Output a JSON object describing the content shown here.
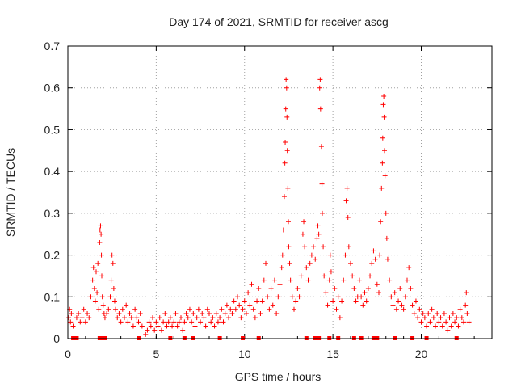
{
  "chart_data": {
    "type": "scatter",
    "title": "Day 174 of 2021, SRMTID for receiver ascg",
    "xlabel": "GPS time / hours",
    "ylabel": "SRMTID / TECUs",
    "xlim": [
      0,
      24
    ],
    "ylim": [
      0,
      0.7
    ],
    "xticks": [
      "0",
      "5",
      "10",
      "15",
      "20"
    ],
    "yticks": [
      "0",
      "0.1",
      "0.2",
      "0.3",
      "0.4",
      "0.5",
      "0.6",
      "0.7"
    ],
    "grid": true,
    "marker": "+",
    "color": "#ff0000",
    "series": [
      {
        "name": "SRMTID",
        "points": [
          [
            0.05,
            0.05
          ],
          [
            0.1,
            0.07
          ],
          [
            0.15,
            0.04
          ],
          [
            0.2,
            0.06
          ],
          [
            0.3,
            0.03
          ],
          [
            0.5,
            0.05
          ],
          [
            0.6,
            0.06
          ],
          [
            0.7,
            0.04
          ],
          [
            0.8,
            0.05
          ],
          [
            0.9,
            0.07
          ],
          [
            1.0,
            0.04
          ],
          [
            1.1,
            0.06
          ],
          [
            1.2,
            0.05
          ],
          [
            1.3,
            0.1
          ],
          [
            1.4,
            0.14
          ],
          [
            1.45,
            0.17
          ],
          [
            1.5,
            0.12
          ],
          [
            1.55,
            0.09
          ],
          [
            1.6,
            0.16
          ],
          [
            1.65,
            0.11
          ],
          [
            1.7,
            0.18
          ],
          [
            1.75,
            0.07
          ],
          [
            1.8,
            0.23
          ],
          [
            1.82,
            0.26
          ],
          [
            1.85,
            0.27
          ],
          [
            1.88,
            0.25
          ],
          [
            1.9,
            0.2
          ],
          [
            1.92,
            0.15
          ],
          [
            1.95,
            0.1
          ],
          [
            2.0,
            0.08
          ],
          [
            2.05,
            0.06
          ],
          [
            2.1,
            0.05
          ],
          [
            2.2,
            0.06
          ],
          [
            2.3,
            0.07
          ],
          [
            2.4,
            0.1
          ],
          [
            2.45,
            0.14
          ],
          [
            2.5,
            0.2
          ],
          [
            2.55,
            0.18
          ],
          [
            2.6,
            0.12
          ],
          [
            2.65,
            0.09
          ],
          [
            2.7,
            0.07
          ],
          [
            2.8,
            0.05
          ],
          [
            2.9,
            0.06
          ],
          [
            3.0,
            0.04
          ],
          [
            3.1,
            0.07
          ],
          [
            3.2,
            0.05
          ],
          [
            3.3,
            0.08
          ],
          [
            3.4,
            0.04
          ],
          [
            3.5,
            0.06
          ],
          [
            3.6,
            0.05
          ],
          [
            3.7,
            0.03
          ],
          [
            3.8,
            0.07
          ],
          [
            3.9,
            0.05
          ],
          [
            4.0,
            0.04
          ],
          [
            4.1,
            0.06
          ],
          [
            4.2,
            0.03
          ],
          [
            4.4,
            0.01
          ],
          [
            4.5,
            0.02
          ],
          [
            4.6,
            0.04
          ],
          [
            4.7,
            0.03
          ],
          [
            4.8,
            0.05
          ],
          [
            4.9,
            0.02
          ],
          [
            5.0,
            0.04
          ],
          [
            5.1,
            0.03
          ],
          [
            5.2,
            0.05
          ],
          [
            5.3,
            0.02
          ],
          [
            5.4,
            0.04
          ],
          [
            5.5,
            0.06
          ],
          [
            5.6,
            0.03
          ],
          [
            5.7,
            0.04
          ],
          [
            5.8,
            0.05
          ],
          [
            5.9,
            0.03
          ],
          [
            6.0,
            0.04
          ],
          [
            6.1,
            0.06
          ],
          [
            6.2,
            0.03
          ],
          [
            6.3,
            0.04
          ],
          [
            6.4,
            0.05
          ],
          [
            6.5,
            0.02
          ],
          [
            6.6,
            0.04
          ],
          [
            6.7,
            0.06
          ],
          [
            6.8,
            0.05
          ],
          [
            6.9,
            0.07
          ],
          [
            7.0,
            0.04
          ],
          [
            7.1,
            0.06
          ],
          [
            7.2,
            0.03
          ],
          [
            7.3,
            0.05
          ],
          [
            7.4,
            0.07
          ],
          [
            7.5,
            0.04
          ],
          [
            7.6,
            0.06
          ],
          [
            7.7,
            0.05
          ],
          [
            7.8,
            0.03
          ],
          [
            7.9,
            0.07
          ],
          [
            8.0,
            0.06
          ],
          [
            8.1,
            0.04
          ],
          [
            8.2,
            0.05
          ],
          [
            8.3,
            0.03
          ],
          [
            8.4,
            0.06
          ],
          [
            8.5,
            0.04
          ],
          [
            8.6,
            0.05
          ],
          [
            8.7,
            0.07
          ],
          [
            8.8,
            0.04
          ],
          [
            8.9,
            0.06
          ],
          [
            9.0,
            0.08
          ],
          [
            9.1,
            0.05
          ],
          [
            9.2,
            0.07
          ],
          [
            9.3,
            0.06
          ],
          [
            9.4,
            0.09
          ],
          [
            9.5,
            0.07
          ],
          [
            9.6,
            0.1
          ],
          [
            9.7,
            0.08
          ],
          [
            9.8,
            0.05
          ],
          [
            9.9,
            0.07
          ],
          [
            10.0,
            0.09
          ],
          [
            10.1,
            0.06
          ],
          [
            10.2,
            0.11
          ],
          [
            10.3,
            0.08
          ],
          [
            10.4,
            0.13
          ],
          [
            10.5,
            0.07
          ],
          [
            10.6,
            0.05
          ],
          [
            10.7,
            0.09
          ],
          [
            10.8,
            0.12
          ],
          [
            10.9,
            0.06
          ],
          [
            11.0,
            0.09
          ],
          [
            11.1,
            0.14
          ],
          [
            11.2,
            0.18
          ],
          [
            11.3,
            0.1
          ],
          [
            11.4,
            0.07
          ],
          [
            11.5,
            0.12
          ],
          [
            11.6,
            0.08
          ],
          [
            11.7,
            0.14
          ],
          [
            11.8,
            0.06
          ],
          [
            11.9,
            0.1
          ],
          [
            12.0,
            0.13
          ],
          [
            12.1,
            0.17
          ],
          [
            12.15,
            0.2
          ],
          [
            12.2,
            0.26
          ],
          [
            12.25,
            0.34
          ],
          [
            12.28,
            0.42
          ],
          [
            12.3,
            0.47
          ],
          [
            12.33,
            0.55
          ],
          [
            12.35,
            0.62
          ],
          [
            12.38,
            0.6
          ],
          [
            12.4,
            0.53
          ],
          [
            12.42,
            0.45
          ],
          [
            12.45,
            0.36
          ],
          [
            12.48,
            0.28
          ],
          [
            12.5,
            0.22
          ],
          [
            12.55,
            0.18
          ],
          [
            12.6,
            0.14
          ],
          [
            12.7,
            0.1
          ],
          [
            12.8,
            0.07
          ],
          [
            12.9,
            0.09
          ],
          [
            13.0,
            0.12
          ],
          [
            13.1,
            0.1
          ],
          [
            13.2,
            0.15
          ],
          [
            13.3,
            0.25
          ],
          [
            13.35,
            0.28
          ],
          [
            13.4,
            0.22
          ],
          [
            13.5,
            0.17
          ],
          [
            13.6,
            0.14
          ],
          [
            13.7,
            0.18
          ],
          [
            13.8,
            0.2
          ],
          [
            13.9,
            0.22
          ],
          [
            14.0,
            0.19
          ],
          [
            14.1,
            0.24
          ],
          [
            14.15,
            0.27
          ],
          [
            14.2,
            0.25
          ],
          [
            14.25,
            0.6
          ],
          [
            14.28,
            0.62
          ],
          [
            14.3,
            0.55
          ],
          [
            14.35,
            0.46
          ],
          [
            14.38,
            0.37
          ],
          [
            14.4,
            0.3
          ],
          [
            14.45,
            0.22
          ],
          [
            14.5,
            0.15
          ],
          [
            14.6,
            0.11
          ],
          [
            14.7,
            0.08
          ],
          [
            14.8,
            0.14
          ],
          [
            14.85,
            0.2
          ],
          [
            14.9,
            0.16
          ],
          [
            15.0,
            0.09
          ],
          [
            15.1,
            0.12
          ],
          [
            15.2,
            0.07
          ],
          [
            15.3,
            0.1
          ],
          [
            15.4,
            0.05
          ],
          [
            15.5,
            0.09
          ],
          [
            15.6,
            0.14
          ],
          [
            15.7,
            0.2
          ],
          [
            15.75,
            0.33
          ],
          [
            15.8,
            0.36
          ],
          [
            15.85,
            0.29
          ],
          [
            15.9,
            0.22
          ],
          [
            16.0,
            0.18
          ],
          [
            16.1,
            0.15
          ],
          [
            16.2,
            0.12
          ],
          [
            16.3,
            0.09
          ],
          [
            16.4,
            0.1
          ],
          [
            16.5,
            0.14
          ],
          [
            16.6,
            0.1
          ],
          [
            16.7,
            0.08
          ],
          [
            16.8,
            0.11
          ],
          [
            16.9,
            0.09
          ],
          [
            17.0,
            0.12
          ],
          [
            17.1,
            0.15
          ],
          [
            17.2,
            0.18
          ],
          [
            17.3,
            0.21
          ],
          [
            17.4,
            0.19
          ],
          [
            17.5,
            0.13
          ],
          [
            17.6,
            0.11
          ],
          [
            17.65,
            0.2
          ],
          [
            17.7,
            0.28
          ],
          [
            17.75,
            0.36
          ],
          [
            17.8,
            0.42
          ],
          [
            17.82,
            0.48
          ],
          [
            17.85,
            0.56
          ],
          [
            17.88,
            0.58
          ],
          [
            17.9,
            0.53
          ],
          [
            17.92,
            0.45
          ],
          [
            17.95,
            0.39
          ],
          [
            18.0,
            0.3
          ],
          [
            18.05,
            0.24
          ],
          [
            18.1,
            0.19
          ],
          [
            18.2,
            0.14
          ],
          [
            18.3,
            0.1
          ],
          [
            18.4,
            0.08
          ],
          [
            18.5,
            0.11
          ],
          [
            18.6,
            0.07
          ],
          [
            18.7,
            0.09
          ],
          [
            18.8,
            0.12
          ],
          [
            18.9,
            0.08
          ],
          [
            19.0,
            0.07
          ],
          [
            19.1,
            0.1
          ],
          [
            19.2,
            0.14
          ],
          [
            19.3,
            0.17
          ],
          [
            19.4,
            0.12
          ],
          [
            19.5,
            0.08
          ],
          [
            19.6,
            0.06
          ],
          [
            19.7,
            0.09
          ],
          [
            19.8,
            0.05
          ],
          [
            19.9,
            0.07
          ],
          [
            20.0,
            0.04
          ],
          [
            20.1,
            0.06
          ],
          [
            20.2,
            0.05
          ],
          [
            20.3,
            0.03
          ],
          [
            20.4,
            0.06
          ],
          [
            20.5,
            0.04
          ],
          [
            20.6,
            0.07
          ],
          [
            20.7,
            0.05
          ],
          [
            20.8,
            0.03
          ],
          [
            20.9,
            0.06
          ],
          [
            21.0,
            0.04
          ],
          [
            21.1,
            0.05
          ],
          [
            21.2,
            0.03
          ],
          [
            21.3,
            0.06
          ],
          [
            21.4,
            0.04
          ],
          [
            21.5,
            0.02
          ],
          [
            21.6,
            0.05
          ],
          [
            21.7,
            0.03
          ],
          [
            21.8,
            0.06
          ],
          [
            21.9,
            0.04
          ],
          [
            22.0,
            0.05
          ],
          [
            22.1,
            0.03
          ],
          [
            22.2,
            0.07
          ],
          [
            22.3,
            0.05
          ],
          [
            22.4,
            0.04
          ],
          [
            22.5,
            0.08
          ],
          [
            22.55,
            0.11
          ],
          [
            22.6,
            0.06
          ],
          [
            22.7,
            0.04
          ]
        ]
      }
    ],
    "zero_hours": [
      0.3,
      0.5,
      1.8,
      2.0,
      2.1,
      4.0,
      5.8,
      6.6,
      7.1,
      8.6,
      9.9,
      10.8,
      13.5,
      14.0,
      14.2,
      14.8,
      15.3,
      16.2,
      16.6,
      17.3,
      17.5,
      18.5,
      19.5,
      20.3,
      22.0
    ]
  }
}
